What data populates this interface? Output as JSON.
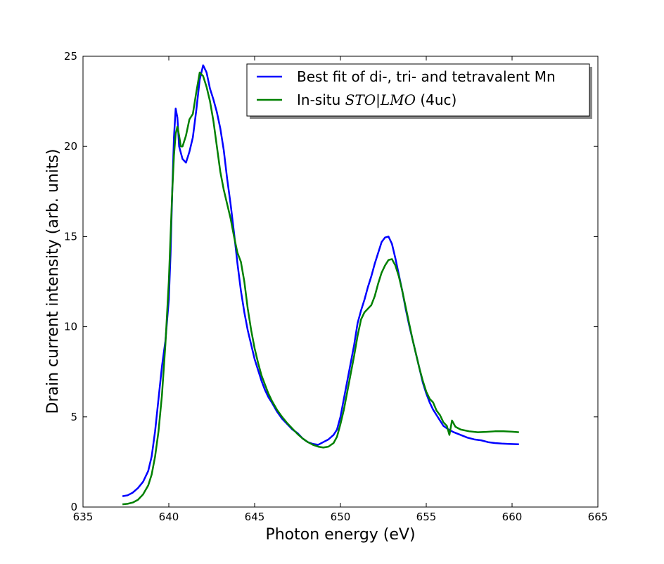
{
  "chart_data": {
    "type": "line",
    "xlabel": "Photon energy (eV)",
    "ylabel": "Drain current intensity (arb. units)",
    "xlim": [
      635,
      665
    ],
    "ylim": [
      0,
      25
    ],
    "xticks": [
      635,
      640,
      645,
      650,
      655,
      660,
      665
    ],
    "yticks": [
      0,
      5,
      10,
      15,
      20,
      25
    ],
    "grid": false,
    "legend_position": "top-right",
    "legend": {
      "entry1": "Best fit of di-, tri- and tetravalent Mn",
      "entry2_prefix": "In-situ ",
      "entry2_math": "STO|LMO",
      "entry2_suffix": " (4uc)"
    },
    "series": [
      {
        "color": "#0000ff",
        "points": [
          [
            637.3,
            0.6
          ],
          [
            637.6,
            0.65
          ],
          [
            637.9,
            0.8
          ],
          [
            638.2,
            1.05
          ],
          [
            638.5,
            1.4
          ],
          [
            638.8,
            2.0
          ],
          [
            639.0,
            2.8
          ],
          [
            639.2,
            4.2
          ],
          [
            639.4,
            6.0
          ],
          [
            639.6,
            7.8
          ],
          [
            639.8,
            9.2
          ],
          [
            640.0,
            11.5
          ],
          [
            640.1,
            14.0
          ],
          [
            640.2,
            17.5
          ],
          [
            640.3,
            20.5
          ],
          [
            640.4,
            22.1
          ],
          [
            640.5,
            21.6
          ],
          [
            640.6,
            20.0
          ],
          [
            640.8,
            19.3
          ],
          [
            641.0,
            19.1
          ],
          [
            641.2,
            19.7
          ],
          [
            641.4,
            20.5
          ],
          [
            641.6,
            22.0
          ],
          [
            641.8,
            23.7
          ],
          [
            642.0,
            24.5
          ],
          [
            642.2,
            24.1
          ],
          [
            642.4,
            23.2
          ],
          [
            642.6,
            22.6
          ],
          [
            642.8,
            21.9
          ],
          [
            643.0,
            21.0
          ],
          [
            643.2,
            19.8
          ],
          [
            643.4,
            18.2
          ],
          [
            643.6,
            16.8
          ],
          [
            643.8,
            15.2
          ],
          [
            644.0,
            13.5
          ],
          [
            644.2,
            12.0
          ],
          [
            644.4,
            10.8
          ],
          [
            644.6,
            9.8
          ],
          [
            644.8,
            9.0
          ],
          [
            645.0,
            8.2
          ],
          [
            645.2,
            7.6
          ],
          [
            645.4,
            7.0
          ],
          [
            645.6,
            6.5
          ],
          [
            645.8,
            6.1
          ],
          [
            646.0,
            5.8
          ],
          [
            646.3,
            5.3
          ],
          [
            646.6,
            4.9
          ],
          [
            646.9,
            4.6
          ],
          [
            647.2,
            4.3
          ],
          [
            647.5,
            4.1
          ],
          [
            647.8,
            3.8
          ],
          [
            648.1,
            3.6
          ],
          [
            648.4,
            3.5
          ],
          [
            648.7,
            3.45
          ],
          [
            649.0,
            3.6
          ],
          [
            649.3,
            3.75
          ],
          [
            649.6,
            4.0
          ],
          [
            649.8,
            4.3
          ],
          [
            650.0,
            5.0
          ],
          [
            650.2,
            6.0
          ],
          [
            650.4,
            7.0
          ],
          [
            650.6,
            8.0
          ],
          [
            650.8,
            9.0
          ],
          [
            651.0,
            10.2
          ],
          [
            651.2,
            10.9
          ],
          [
            651.4,
            11.5
          ],
          [
            651.6,
            12.2
          ],
          [
            651.8,
            12.8
          ],
          [
            652.0,
            13.5
          ],
          [
            652.2,
            14.1
          ],
          [
            652.4,
            14.7
          ],
          [
            652.6,
            14.95
          ],
          [
            652.8,
            15.0
          ],
          [
            653.0,
            14.6
          ],
          [
            653.2,
            13.8
          ],
          [
            653.4,
            12.9
          ],
          [
            653.6,
            12.0
          ],
          [
            653.8,
            11.0
          ],
          [
            654.0,
            10.1
          ],
          [
            654.2,
            9.3
          ],
          [
            654.4,
            8.5
          ],
          [
            654.6,
            7.7
          ],
          [
            654.8,
            6.9
          ],
          [
            655.0,
            6.3
          ],
          [
            655.2,
            5.8
          ],
          [
            655.4,
            5.4
          ],
          [
            655.6,
            5.1
          ],
          [
            655.8,
            4.8
          ],
          [
            656.0,
            4.5
          ],
          [
            656.3,
            4.3
          ],
          [
            656.6,
            4.15
          ],
          [
            657.0,
            4.0
          ],
          [
            657.4,
            3.85
          ],
          [
            657.8,
            3.75
          ],
          [
            658.2,
            3.7
          ],
          [
            658.6,
            3.6
          ],
          [
            659.0,
            3.55
          ],
          [
            659.4,
            3.52
          ],
          [
            659.8,
            3.5
          ],
          [
            660.4,
            3.48
          ]
        ]
      },
      {
        "color": "#008000",
        "points": [
          [
            637.3,
            0.15
          ],
          [
            637.6,
            0.18
          ],
          [
            637.9,
            0.25
          ],
          [
            638.2,
            0.4
          ],
          [
            638.5,
            0.7
          ],
          [
            638.8,
            1.2
          ],
          [
            639.0,
            1.8
          ],
          [
            639.2,
            2.8
          ],
          [
            639.4,
            4.2
          ],
          [
            639.6,
            6.2
          ],
          [
            639.8,
            9.0
          ],
          [
            640.0,
            12.5
          ],
          [
            640.1,
            15.0
          ],
          [
            640.2,
            17.5
          ],
          [
            640.3,
            19.5
          ],
          [
            640.4,
            20.7
          ],
          [
            640.5,
            21.1
          ],
          [
            640.6,
            20.6
          ],
          [
            640.7,
            20.0
          ],
          [
            640.8,
            20.0
          ],
          [
            641.0,
            20.6
          ],
          [
            641.2,
            21.5
          ],
          [
            641.4,
            21.8
          ],
          [
            641.6,
            23.0
          ],
          [
            641.8,
            24.1
          ],
          [
            642.0,
            23.9
          ],
          [
            642.2,
            23.3
          ],
          [
            642.4,
            22.5
          ],
          [
            642.6,
            21.4
          ],
          [
            642.8,
            20.0
          ],
          [
            643.0,
            18.6
          ],
          [
            643.2,
            17.6
          ],
          [
            643.4,
            16.8
          ],
          [
            643.6,
            16.0
          ],
          [
            643.8,
            15.0
          ],
          [
            644.0,
            14.1
          ],
          [
            644.2,
            13.6
          ],
          [
            644.4,
            12.5
          ],
          [
            644.6,
            11.0
          ],
          [
            644.8,
            9.8
          ],
          [
            645.0,
            8.8
          ],
          [
            645.2,
            8.0
          ],
          [
            645.4,
            7.3
          ],
          [
            645.6,
            6.8
          ],
          [
            645.8,
            6.3
          ],
          [
            646.0,
            5.9
          ],
          [
            646.3,
            5.4
          ],
          [
            646.6,
            5.0
          ],
          [
            646.9,
            4.65
          ],
          [
            647.2,
            4.35
          ],
          [
            647.5,
            4.05
          ],
          [
            647.8,
            3.8
          ],
          [
            648.1,
            3.6
          ],
          [
            648.4,
            3.45
          ],
          [
            648.7,
            3.35
          ],
          [
            649.0,
            3.3
          ],
          [
            649.3,
            3.35
          ],
          [
            649.6,
            3.55
          ],
          [
            649.8,
            3.9
          ],
          [
            650.0,
            4.6
          ],
          [
            650.2,
            5.4
          ],
          [
            650.4,
            6.4
          ],
          [
            650.6,
            7.4
          ],
          [
            650.8,
            8.4
          ],
          [
            651.0,
            9.5
          ],
          [
            651.2,
            10.4
          ],
          [
            651.4,
            10.8
          ],
          [
            651.6,
            11.0
          ],
          [
            651.8,
            11.2
          ],
          [
            652.0,
            11.7
          ],
          [
            652.2,
            12.4
          ],
          [
            652.4,
            13.0
          ],
          [
            652.6,
            13.4
          ],
          [
            652.8,
            13.7
          ],
          [
            653.0,
            13.75
          ],
          [
            653.2,
            13.4
          ],
          [
            653.4,
            12.8
          ],
          [
            653.6,
            12.0
          ],
          [
            653.8,
            11.1
          ],
          [
            654.0,
            10.2
          ],
          [
            654.2,
            9.3
          ],
          [
            654.4,
            8.5
          ],
          [
            654.6,
            7.7
          ],
          [
            654.8,
            7.0
          ],
          [
            655.0,
            6.4
          ],
          [
            655.2,
            6.0
          ],
          [
            655.4,
            5.8
          ],
          [
            655.6,
            5.35
          ],
          [
            655.8,
            5.1
          ],
          [
            656.0,
            4.7
          ],
          [
            656.2,
            4.5
          ],
          [
            656.35,
            4.0
          ],
          [
            656.5,
            4.8
          ],
          [
            656.7,
            4.45
          ],
          [
            657.0,
            4.3
          ],
          [
            657.5,
            4.2
          ],
          [
            658.0,
            4.15
          ],
          [
            658.5,
            4.17
          ],
          [
            659.0,
            4.2
          ],
          [
            659.5,
            4.2
          ],
          [
            660.0,
            4.18
          ],
          [
            660.4,
            4.15
          ]
        ]
      }
    ]
  }
}
